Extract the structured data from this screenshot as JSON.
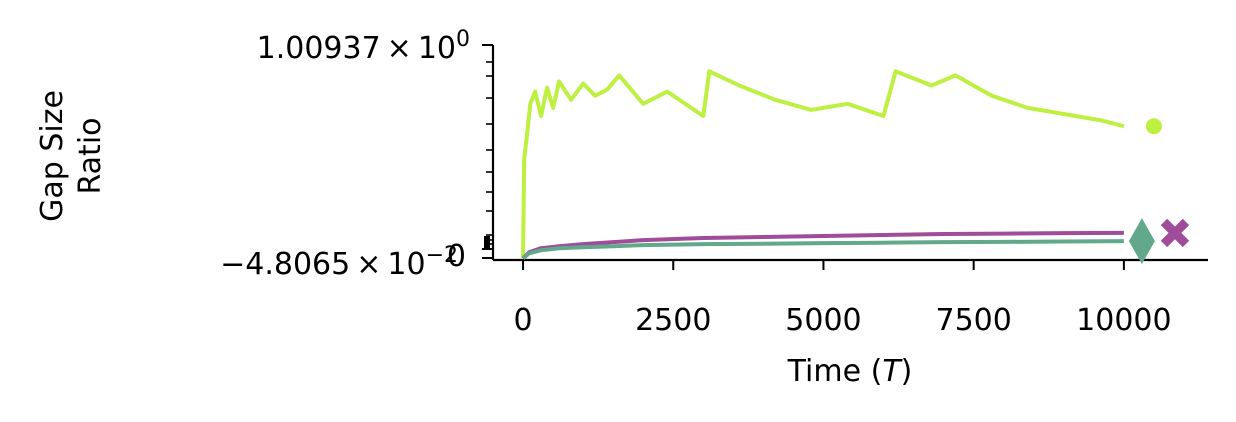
{
  "chart_data": {
    "type": "line",
    "title": "",
    "xlabel": {
      "main": "Time (",
      "var": "T",
      "close": ")"
    },
    "ylabel": {
      "line1": "Gap Size",
      "line2": "Ratio"
    },
    "y_scale": "symlog",
    "xlim": [
      -500,
      11400
    ],
    "ylim": [
      -0.048065,
      1.00937
    ],
    "x_ticks": [
      0,
      2500,
      5000,
      7500,
      10000
    ],
    "x_tick_labels": [
      "0",
      "2500",
      "5000",
      "7500",
      "10000"
    ],
    "y_tick_labels": {
      "top": {
        "mantissa": "1.00937",
        "times": "×",
        "base": "10",
        "exp": "0"
      },
      "bottom": {
        "mantissa": "−4.8065",
        "times": "×",
        "base": "10",
        "exp": "−2"
      },
      "overlap": "0"
    },
    "grid": false,
    "legend": "none",
    "series": [
      {
        "color": "#bdf040",
        "marker": "circle",
        "marker_x": 10500,
        "end_value": 0.61,
        "points": [
          [
            0,
            -0.04
          ],
          [
            20,
            0.45
          ],
          [
            60,
            0.55
          ],
          [
            120,
            0.72
          ],
          [
            200,
            0.78
          ],
          [
            300,
            0.66
          ],
          [
            400,
            0.8
          ],
          [
            500,
            0.7
          ],
          [
            600,
            0.83
          ],
          [
            800,
            0.74
          ],
          [
            1000,
            0.82
          ],
          [
            1200,
            0.76
          ],
          [
            1400,
            0.79
          ],
          [
            1600,
            0.86
          ],
          [
            2000,
            0.72
          ],
          [
            2400,
            0.78
          ],
          [
            3000,
            0.66
          ],
          [
            3100,
            0.88
          ],
          [
            3600,
            0.81
          ],
          [
            4200,
            0.74
          ],
          [
            4800,
            0.69
          ],
          [
            5400,
            0.72
          ],
          [
            6000,
            0.66
          ],
          [
            6200,
            0.88
          ],
          [
            6800,
            0.81
          ],
          [
            7200,
            0.86
          ],
          [
            7800,
            0.76
          ],
          [
            8400,
            0.7
          ],
          [
            9000,
            0.67
          ],
          [
            9600,
            0.64
          ],
          [
            10000,
            0.61
          ]
        ]
      },
      {
        "color": "#9f4c9b",
        "marker": "x",
        "marker_x": 10850,
        "end_value": 0.085,
        "points": [
          [
            0,
            -0.04
          ],
          [
            100,
            -0.01
          ],
          [
            300,
            0.01
          ],
          [
            600,
            0.02
          ],
          [
            1000,
            0.03
          ],
          [
            1500,
            0.04
          ],
          [
            2000,
            0.05
          ],
          [
            3000,
            0.06
          ],
          [
            4000,
            0.065
          ],
          [
            5000,
            0.07
          ],
          [
            6000,
            0.075
          ],
          [
            7000,
            0.08
          ],
          [
            8000,
            0.082
          ],
          [
            9000,
            0.084
          ],
          [
            10000,
            0.085
          ]
        ]
      },
      {
        "color": "#62a88a",
        "marker": "diamond",
        "marker_x": 10300,
        "end_value": 0.045,
        "points": [
          [
            0,
            -0.04
          ],
          [
            100,
            -0.015
          ],
          [
            300,
            0.0
          ],
          [
            600,
            0.01
          ],
          [
            1000,
            0.015
          ],
          [
            1500,
            0.02
          ],
          [
            2000,
            0.025
          ],
          [
            3000,
            0.03
          ],
          [
            4000,
            0.032
          ],
          [
            5000,
            0.035
          ],
          [
            6000,
            0.037
          ],
          [
            7000,
            0.04
          ],
          [
            8000,
            0.041
          ],
          [
            9000,
            0.043
          ],
          [
            10000,
            0.045
          ]
        ]
      }
    ]
  }
}
